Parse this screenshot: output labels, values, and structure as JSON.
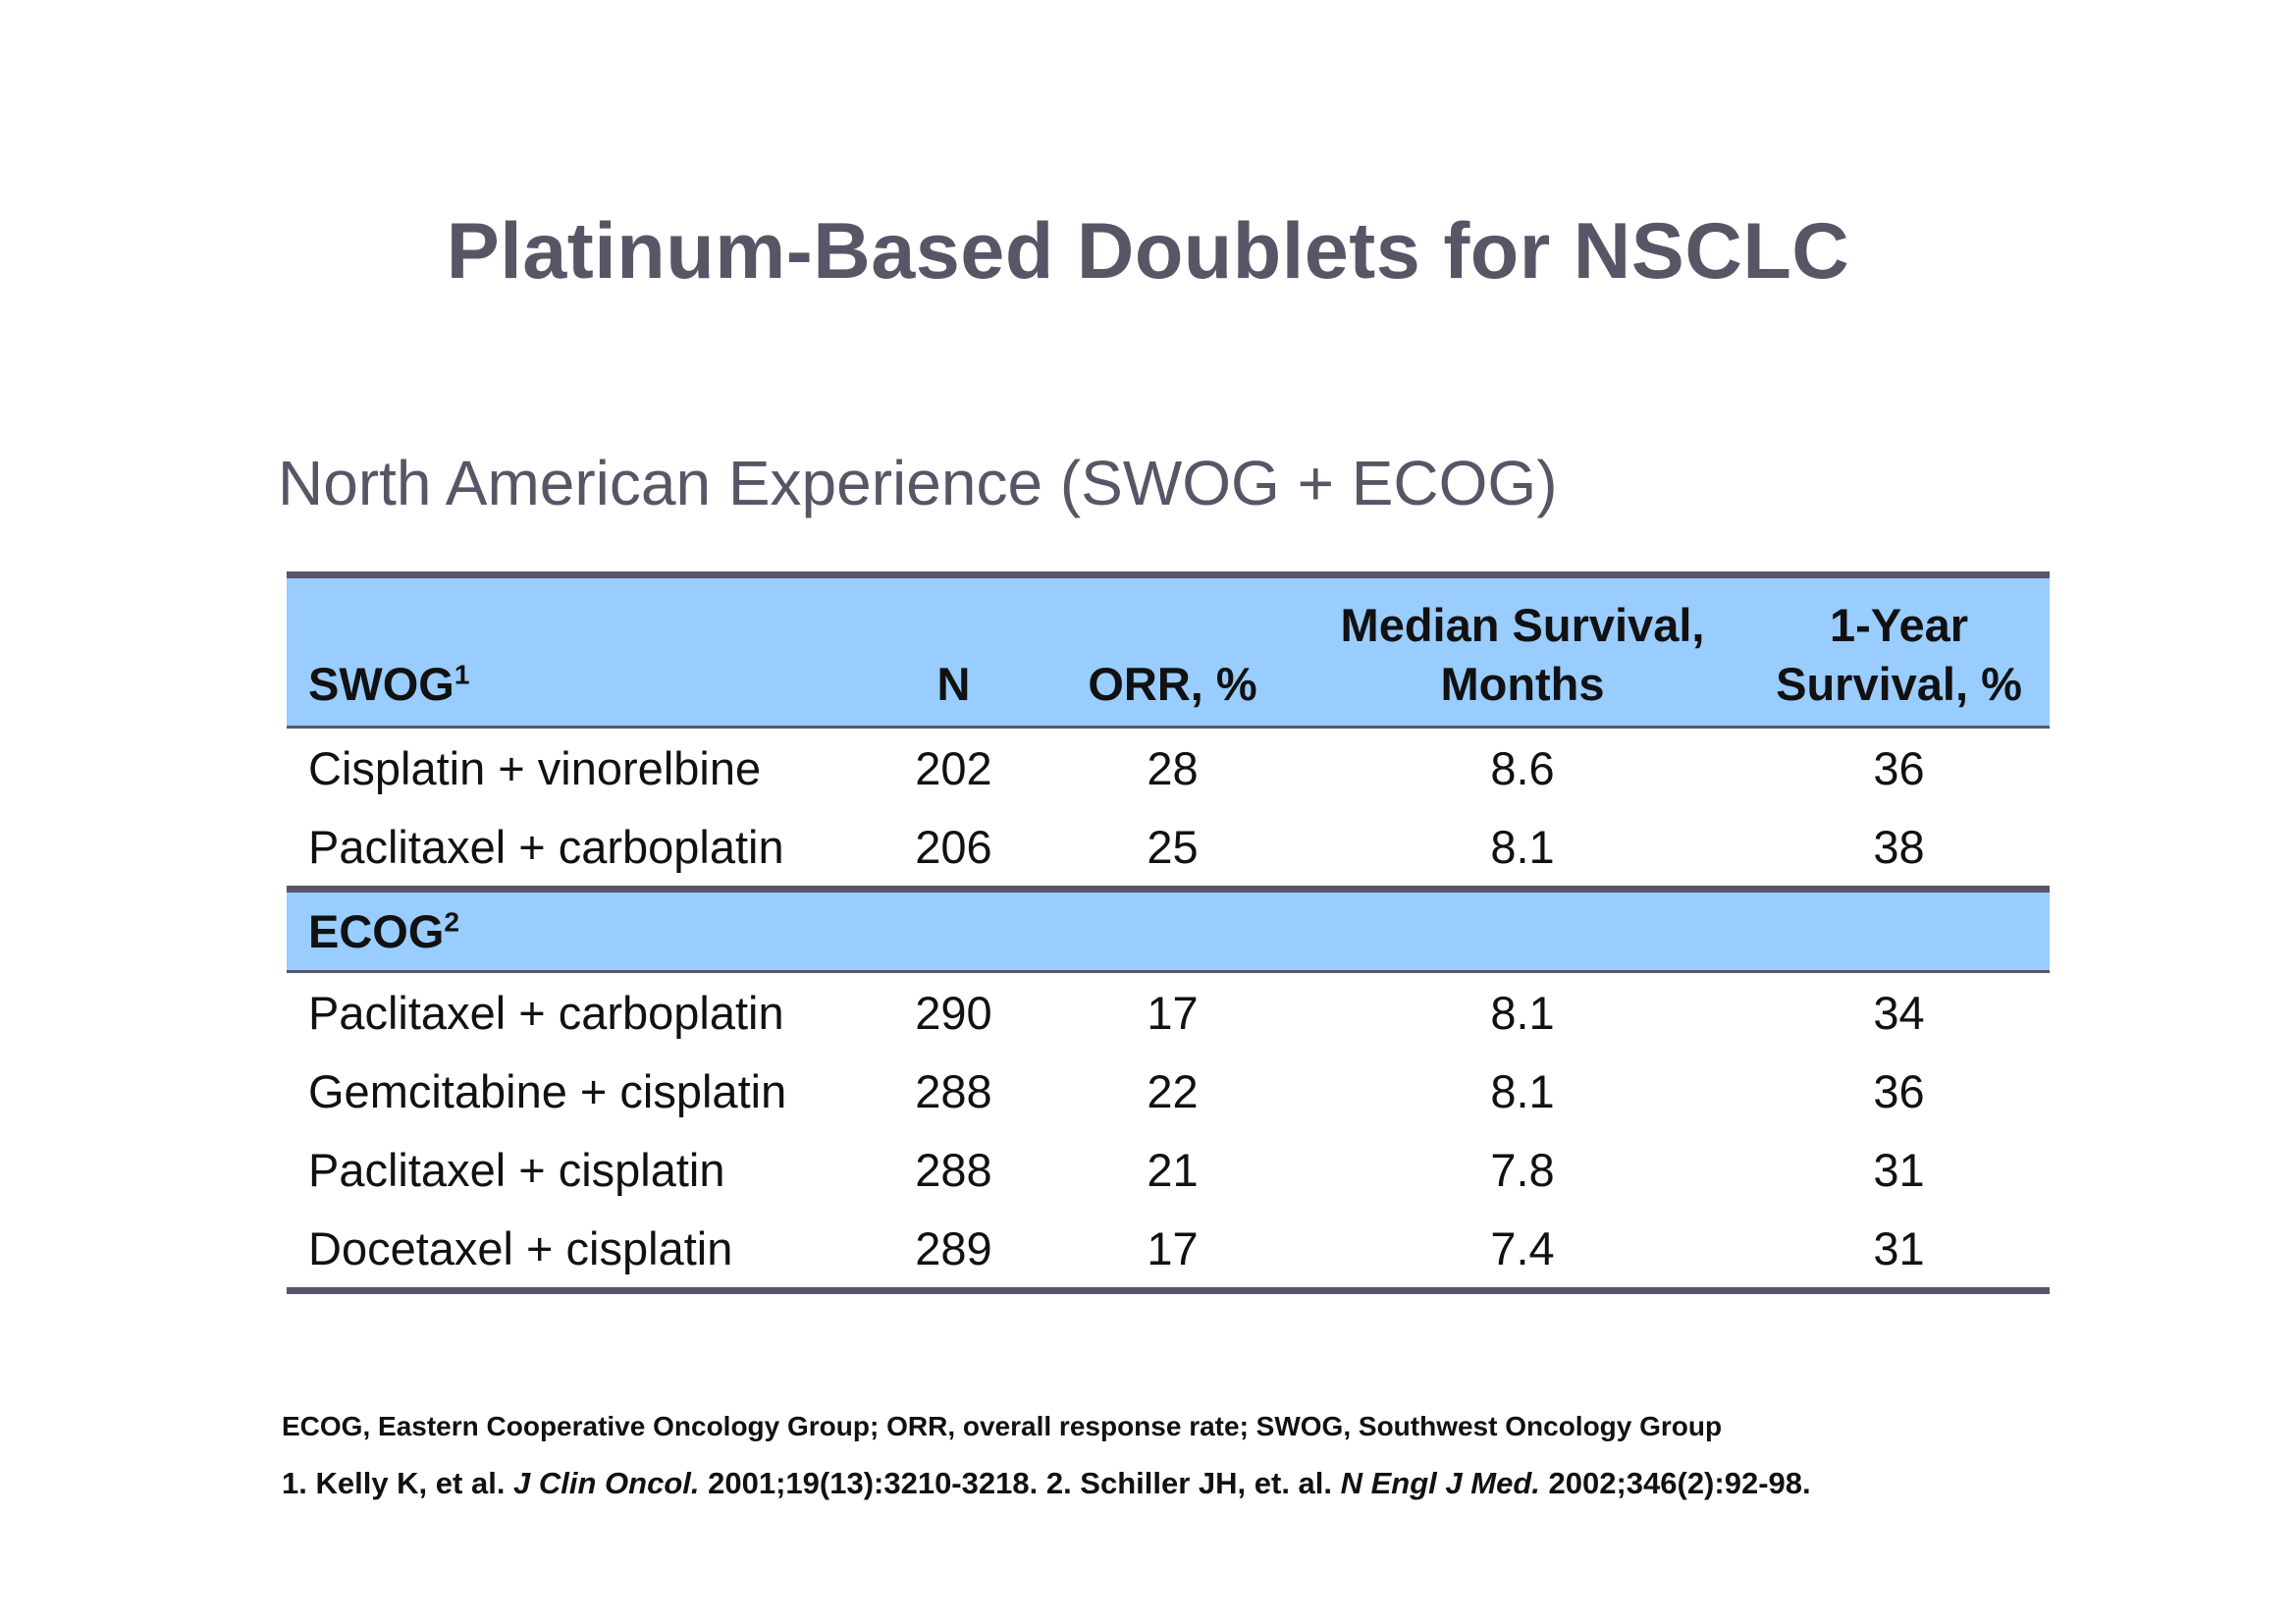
{
  "title": "Platinum-Based Doublets for NSCLC",
  "subtitle": "North American Experience (SWOG + ECOG)",
  "table": {
    "header": {
      "group": "SWOG",
      "group_sup": "1",
      "n": "N",
      "orr": "ORR, %",
      "median_line1": "Median Survival,",
      "median_line2": "Months",
      "year_line1": "1-Year",
      "year_line2": "Survival, %"
    },
    "swog_rows": [
      {
        "regimen": "Cisplatin + vinorelbine",
        "n": "202",
        "orr": "28",
        "median": "8.6",
        "year": "36"
      },
      {
        "regimen": "Paclitaxel + carboplatin",
        "n": "206",
        "orr": "25",
        "median": "8.1",
        "year": "38"
      }
    ],
    "ecog_group": "ECOG",
    "ecog_sup": "2",
    "ecog_rows": [
      {
        "regimen": "Paclitaxel + carboplatin",
        "n": "290",
        "orr": "17",
        "median": "8.1",
        "year": "34"
      },
      {
        "regimen": "Gemcitabine + cisplatin",
        "n": "288",
        "orr": "22",
        "median": "8.1",
        "year": "36"
      },
      {
        "regimen": "Paclitaxel + cisplatin",
        "n": "288",
        "orr": "21",
        "median": "7.8",
        "year": "31"
      },
      {
        "regimen": "Docetaxel + cisplatin",
        "n": "289",
        "orr": "17",
        "median": "7.4",
        "year": "31"
      }
    ]
  },
  "footnotes": {
    "abbreviations": "ECOG, Eastern Cooperative Oncology Group; ORR, overall response rate; SWOG, Southwest Oncology Group",
    "ref1_prefix": "1. Kelly K, et al. ",
    "ref1_journal": "J Clin Oncol.",
    "ref1_suffix": " 2001;19(13):3210-3218. 2. Schiller JH, et. al. ",
    "ref2_journal": "N Engl J Med.",
    "ref2_suffix": " 2002;346(2):92-98."
  },
  "colors": {
    "header_fill": "#99ccff",
    "rule": "#58546a",
    "title_text": "#5a5566"
  }
}
